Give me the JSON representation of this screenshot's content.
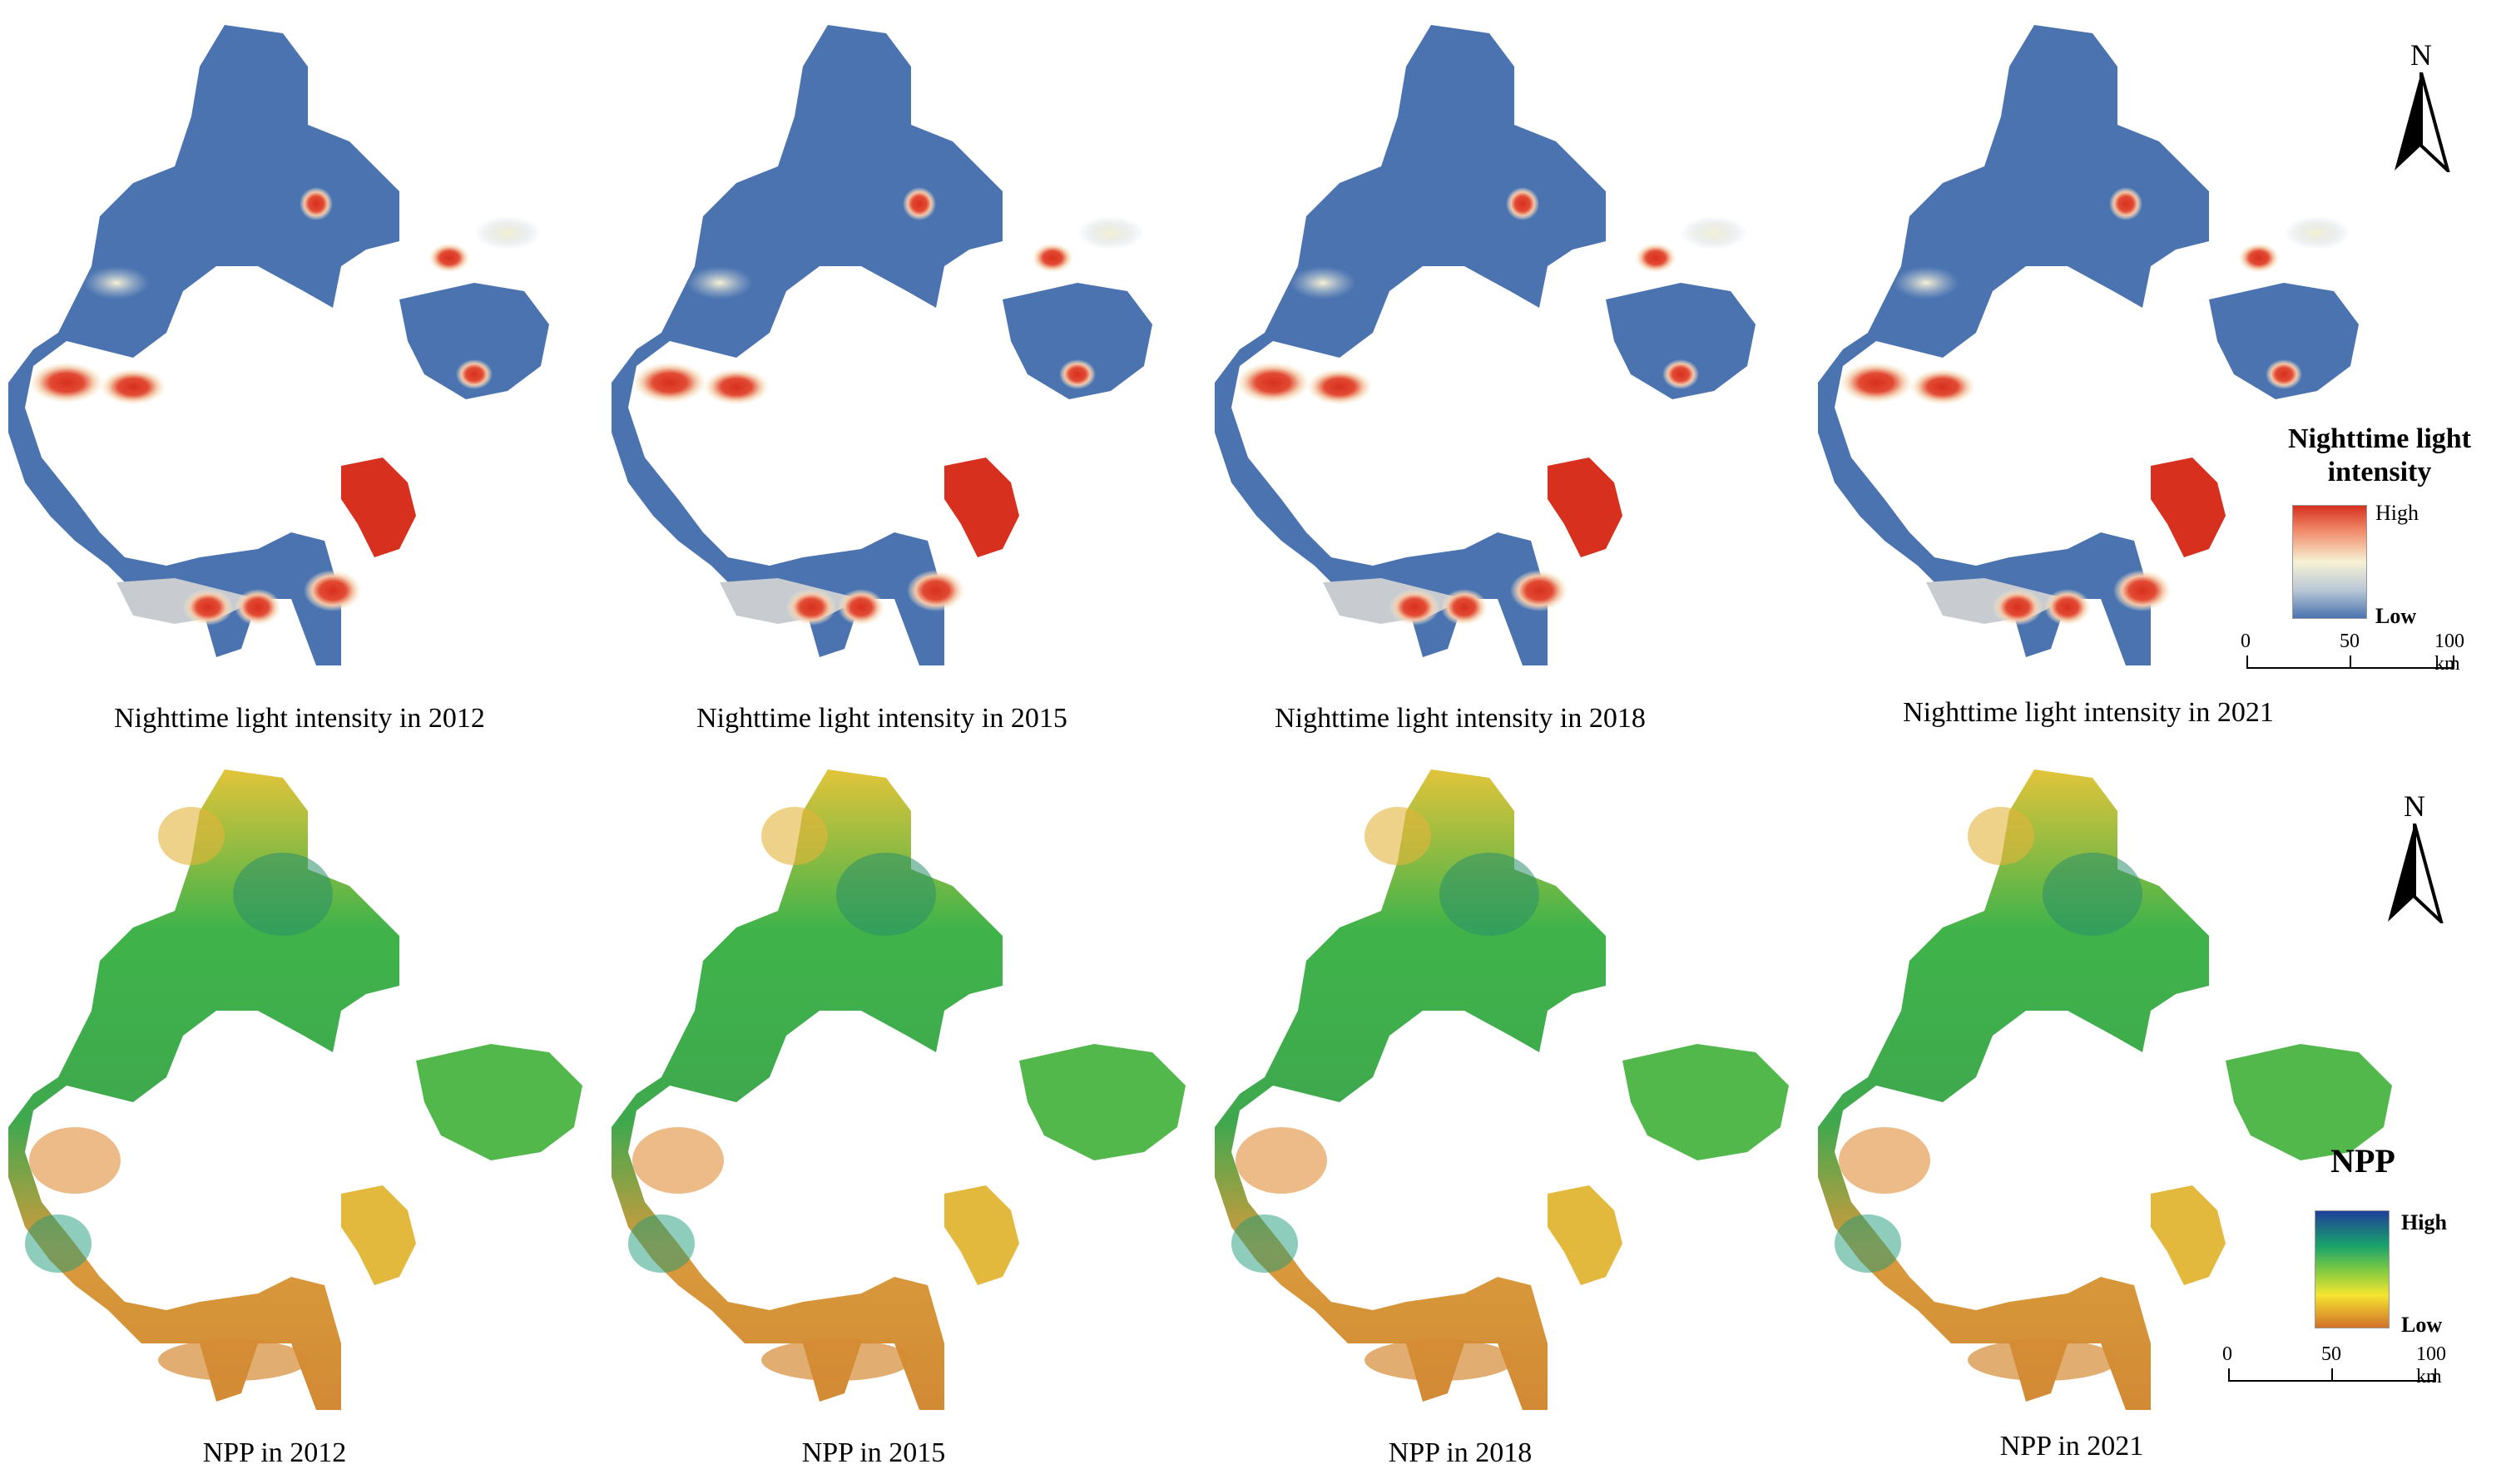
{
  "figure": {
    "ntl_panels": [
      {
        "caption": "Nighttime light intensity in 2012"
      },
      {
        "caption": "Nighttime light intensity in 2015"
      },
      {
        "caption": "Nighttime light intensity in 2018"
      },
      {
        "caption": "Nighttime light intensity in 2021"
      }
    ],
    "npp_panels": [
      {
        "caption": "NPP in 2012"
      },
      {
        "caption": "NPP in 2015"
      },
      {
        "caption": "NPP in 2018"
      },
      {
        "caption": "NPP in 2021"
      }
    ],
    "north_label": "N",
    "ntl_legend": {
      "title_line1": "Nighttime light",
      "title_line2": "intensity",
      "high": "High",
      "low": "Low",
      "colors": [
        "#d7301f",
        "#f4a582",
        "#f7f2d4",
        "#b9c7d6",
        "#4a73b0"
      ]
    },
    "npp_legend": {
      "title": "NPP",
      "high": "High",
      "low": "Low",
      "colors": [
        "#1f3f9a",
        "#1aa36b",
        "#7bc943",
        "#f5e52f",
        "#d2702a"
      ]
    },
    "scalebar": {
      "zero": "0",
      "mid": "50",
      "max": "100 km"
    },
    "colors": {
      "ntl_background": "#4a73b0",
      "ntl_hot": "#d7301f",
      "npp_green": "#3fb34a",
      "npp_yellow": "#e8d23a",
      "npp_orange": "#d99a3c"
    }
  }
}
